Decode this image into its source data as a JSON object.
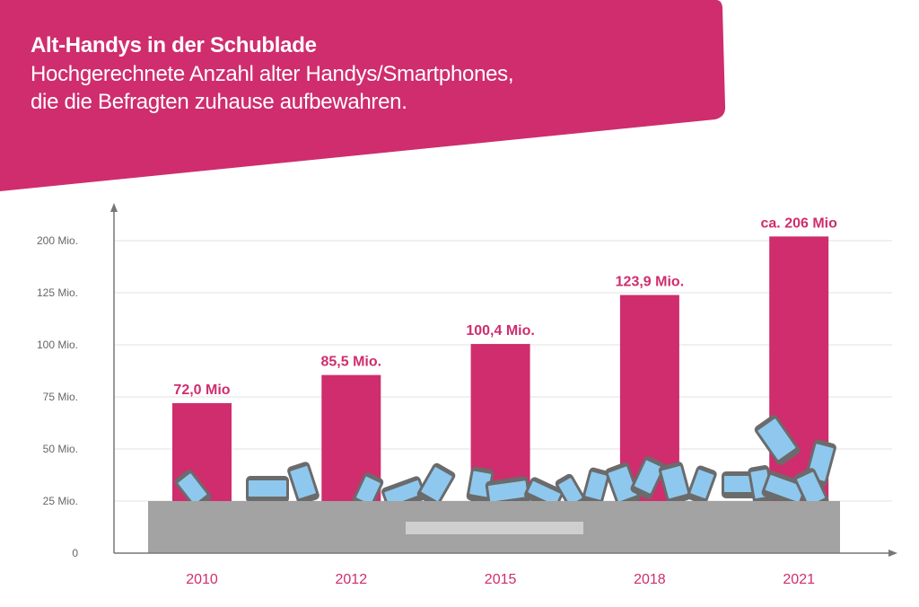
{
  "header": {
    "title": "Alt-Handys in der Schublade",
    "subtitle_line1": "Hochgerechnete Anzahl alter Handys/Smartphones,",
    "subtitle_line2": "die die Befragten zuhause aufbewahren."
  },
  "colors": {
    "accent": "#cf2d6e",
    "drawer": "#a3a3a3",
    "drawer_handle": "#cfcfcf",
    "grid": "#e0e0e0",
    "axis": "#777777",
    "phone_body": "#6b6b6b",
    "phone_screen": "#8ec8ee"
  },
  "chart_data": {
    "type": "bar",
    "title": "Alt-Handys in der Schublade",
    "subtitle": "Hochgerechnete Anzahl alter Handys/Smartphones, die die Befragten zuhause aufbewahren.",
    "xlabel": "",
    "ylabel": "",
    "categories": [
      "2010",
      "2012",
      "2015",
      "2018",
      "2021"
    ],
    "values": [
      72.0,
      85.5,
      100.4,
      123.9,
      206
    ],
    "unit": "Mio.",
    "data_labels": [
      "72,0 Mio",
      "85,5 Mio.",
      "100,4 Mio.",
      "123,9 Mio.",
      "ca. 206 Mio"
    ],
    "y_ticks": [
      0,
      25,
      50,
      75,
      100,
      125,
      200
    ],
    "y_tick_labels": [
      "0",
      "25 Mio.",
      "50 Mio.",
      "75 Mio.",
      "100 Mio.",
      "125 Mio.",
      "200 Mio."
    ],
    "y_scale_note": "ticks evenly spaced (non-linear scale)",
    "ylim": [
      0,
      200
    ],
    "grid": true,
    "legend": "none",
    "decoration": "drawer full of old phones covering the lower part of the bars"
  }
}
